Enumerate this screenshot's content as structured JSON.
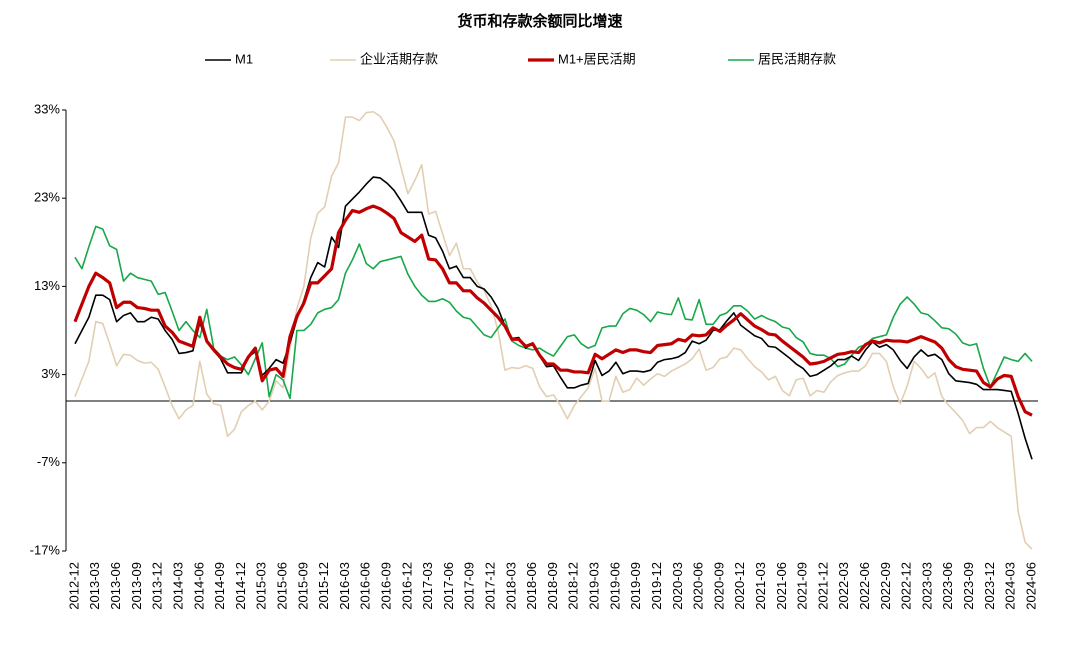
{
  "chart_data": {
    "type": "line",
    "title": "货币和存款余额同比增速",
    "legend": "top",
    "categories": [
      "2012-12",
      null,
      null,
      "2013-03",
      null,
      null,
      "2013-06",
      null,
      null,
      "2013-09",
      null,
      null,
      "2013-12",
      null,
      null,
      "2014-03",
      null,
      null,
      "2014-06",
      null,
      null,
      "2014-09",
      null,
      null,
      "2014-12",
      null,
      null,
      "2015-03",
      null,
      null,
      "2015-06",
      null,
      null,
      "2015-09",
      null,
      null,
      "2015-12",
      null,
      null,
      "2016-03",
      null,
      null,
      "2016-06",
      null,
      null,
      "2016-09",
      null,
      null,
      "2016-12",
      null,
      null,
      "2017-03",
      null,
      null,
      "2017-06",
      null,
      null,
      "2017-09",
      null,
      null,
      "2017-12",
      null,
      null,
      "2018-03",
      null,
      null,
      "2018-06",
      null,
      null,
      "2018-09",
      null,
      null,
      "2018-12",
      null,
      null,
      "2019-03",
      null,
      null,
      "2019-06",
      null,
      null,
      "2019-09",
      null,
      null,
      "2019-12",
      null,
      null,
      "2020-03",
      null,
      null,
      "2020-06",
      null,
      null,
      "2020-09",
      null,
      null,
      "2020-12",
      null,
      null,
      "2021-03",
      null,
      null,
      "2021-06",
      null,
      null,
      "2021-09",
      null,
      null,
      "2021-12",
      null,
      null,
      "2022-03",
      null,
      null,
      "2022-06",
      null,
      null,
      "2022-09",
      null,
      null,
      "2022-12",
      null,
      null,
      "2023-03",
      null,
      null,
      "2023-06",
      null,
      null,
      "2023-09",
      null,
      null,
      "2023-12",
      null,
      null,
      "2024-03",
      null,
      null,
      "2024-06"
    ],
    "ylim": [
      -17,
      33
    ],
    "yticks": [
      {
        "value": -17,
        "label": "-17%"
      },
      {
        "value": -7,
        "label": "-7%"
      },
      {
        "value": 3,
        "label": "3%"
      },
      {
        "value": 13,
        "label": "13%"
      },
      {
        "value": 23,
        "label": "23%"
      },
      {
        "value": 33,
        "label": "33%"
      }
    ],
    "series": [
      {
        "name": "M1",
        "color": "#000000",
        "width": 1.6,
        "values": [
          6.5,
          8,
          9.5,
          12,
          12,
          11.5,
          9,
          9.7,
          10,
          9,
          9,
          9.5,
          9.3,
          8,
          7,
          5.4,
          5.5,
          5.7,
          8.9,
          6.7,
          5.7,
          4.8,
          3.2,
          3.2,
          3.2,
          5,
          5.6,
          2.9,
          3.7,
          4.7,
          4.3,
          6.6,
          9.3,
          11.4,
          14,
          15.7,
          15.2,
          18.6,
          17.4,
          22.1,
          22.9,
          23.7,
          24.6,
          25.4,
          25.3,
          24.7,
          23.9,
          22.7,
          21.4,
          21.4,
          21.4,
          18.8,
          18.5,
          17,
          15,
          15.3,
          14,
          14,
          13,
          12.7,
          11.8,
          10.5,
          8.5,
          7.1,
          7.2,
          6,
          6.6,
          5.1,
          3.9,
          4,
          2.7,
          1.5,
          1.5,
          1.8,
          2,
          4.6,
          2.9,
          3.4,
          4.4,
          3.1,
          3.4,
          3.4,
          3.3,
          3.5,
          4.4,
          4.7,
          4.8,
          5,
          5.5,
          6.8,
          6.5,
          6.9,
          8,
          8.1,
          9.1,
          10,
          8.6,
          8,
          7.4,
          7.1,
          6.2,
          6.1,
          5.5,
          4.9,
          4.2,
          3.7,
          2.8,
          3,
          3.5,
          4,
          4.7,
          4.7,
          5.1,
          4.6,
          5.8,
          6.7,
          6.1,
          6.4,
          5.8,
          4.6,
          3.7,
          5,
          5.8,
          5.1,
          5.3,
          4.7,
          3.1,
          2.3,
          2.2,
          2.1,
          1.9,
          1.3,
          1.3,
          1.3,
          1.2,
          1.1,
          -1.4,
          -4.2,
          -6.6
        ]
      },
      {
        "name": "企业活期存款",
        "color": "#e2cfb3",
        "width": 1.6,
        "values": [
          0.5,
          2.5,
          4.5,
          9,
          8.8,
          6.5,
          4,
          5.3,
          5.2,
          4.6,
          4.3,
          4.4,
          3.6,
          1.6,
          -0.5,
          -2,
          -1,
          -0.5,
          4.5,
          0.8,
          -0.3,
          -0.5,
          -4,
          -3.2,
          -1.2,
          -0.5,
          0,
          -1,
          0,
          2.3,
          1.5,
          6,
          10.5,
          13,
          18.5,
          21.3,
          22,
          25.5,
          27,
          32.2,
          32.2,
          31.8,
          32.7,
          32.8,
          32.3,
          31,
          29.5,
          26.5,
          23.5,
          25,
          26.8,
          21.2,
          21.5,
          19,
          16.5,
          17.9,
          15,
          15,
          13.5,
          12.5,
          10.8,
          8,
          3.5,
          3.8,
          3.7,
          4,
          3.7,
          1.6,
          0.5,
          0.7,
          -0.5,
          -2,
          -0.5,
          0.5,
          1.5,
          3.7,
          0,
          0,
          2.8,
          1,
          1.3,
          2.6,
          1.8,
          2.5,
          3.1,
          2.8,
          3.4,
          3.8,
          4.2,
          4.8,
          5.9,
          3.5,
          3.8,
          4.8,
          5,
          6,
          5.8,
          4.8,
          3.9,
          3.3,
          2.4,
          2.8,
          1.2,
          0.6,
          2.4,
          2.6,
          0.6,
          1.2,
          1,
          2.2,
          2.9,
          3.2,
          3.4,
          3.4,
          4,
          5.4,
          5.4,
          4.5,
          1.6,
          -0.3,
          1.7,
          4.5,
          3.7,
          2.6,
          3.2,
          0.5,
          -0.5,
          -1.3,
          -2.2,
          -3.7,
          -3,
          -3,
          -2.3,
          -3,
          -3.5,
          -4,
          -12.5,
          -16,
          -16.8
        ]
      },
      {
        "name": "M1+居民活期",
        "color": "#c00000",
        "width": 3.2,
        "values": [
          9,
          11,
          13,
          14.5,
          14,
          13.4,
          10.6,
          11.2,
          11.2,
          10.6,
          10.5,
          10.3,
          10.3,
          8.5,
          7.8,
          6.8,
          6.5,
          6.2,
          9.5,
          6.8,
          5.8,
          5,
          4.2,
          3.8,
          3.6,
          5,
          6,
          2.3,
          3.5,
          3.7,
          2.8,
          7.3,
          9.6,
          11.1,
          13.4,
          13.4,
          14.2,
          15,
          19.1,
          20.5,
          21.6,
          21.4,
          21.8,
          22.1,
          21.8,
          21.3,
          20.7,
          19.1,
          18.6,
          18.1,
          18.8,
          16.1,
          16,
          15,
          13.4,
          13.4,
          12.5,
          12.5,
          11.7,
          11.1,
          10.3,
          9.5,
          8.5,
          7,
          7,
          6.2,
          6.5,
          5.2,
          4.2,
          4.2,
          3.5,
          3.5,
          3.3,
          3.3,
          3.2,
          5.3,
          4.8,
          5.3,
          5.8,
          5.5,
          5.8,
          5.8,
          5.6,
          5.5,
          6.3,
          6.4,
          6.5,
          7,
          6.8,
          7.5,
          7.4,
          7.5,
          8.3,
          7.9,
          8.6,
          9.2,
          9.9,
          9.2,
          8.5,
          8.1,
          7.6,
          7.5,
          6.8,
          6.2,
          5.6,
          5,
          4.2,
          4.3,
          4.5,
          4.9,
          5.3,
          5.4,
          5.6,
          5.5,
          6.4,
          6.8,
          6.6,
          6.9,
          6.8,
          6.8,
          6.7,
          7,
          7.3,
          7,
          6.7,
          6,
          4.7,
          3.9,
          3.6,
          3.5,
          3.4,
          2.1,
          1.6,
          2.5,
          2.9,
          2.8,
          0.5,
          -1.2,
          -1.6
        ]
      },
      {
        "name": "居民活期存款",
        "color": "#17a84a",
        "width": 1.6,
        "values": [
          16.3,
          15,
          17.5,
          19.8,
          19.5,
          17.6,
          17.2,
          13.6,
          14.5,
          14,
          13.8,
          13.6,
          12.1,
          12.3,
          10.2,
          8,
          9,
          8,
          7.2,
          10.4,
          6,
          5.1,
          4.7,
          5,
          4.1,
          3,
          4.8,
          6.6,
          0.5,
          3,
          2.4,
          0.3,
          8,
          8,
          8.7,
          10,
          10.4,
          10.6,
          11.5,
          14.5,
          16,
          17.8,
          15.6,
          15,
          15.8,
          16,
          16.2,
          16.4,
          14.4,
          13,
          12,
          11.3,
          11.3,
          11.6,
          11.2,
          10.2,
          9.5,
          9.3,
          8.4,
          7.5,
          7.2,
          8.3,
          9.3,
          6.8,
          6.3,
          6,
          5.8,
          6,
          5.5,
          5.1,
          6.2,
          7.3,
          7.5,
          6.5,
          6,
          6.3,
          8.3,
          8.5,
          8.5,
          9.9,
          10.5,
          10.3,
          9.8,
          9,
          10.1,
          9.9,
          9.8,
          11.7,
          9.3,
          9.2,
          11.5,
          8.7,
          8.7,
          9.7,
          10,
          10.8,
          10.8,
          10.2,
          9.3,
          9.7,
          9.3,
          9,
          8.4,
          8.2,
          7.2,
          6.7,
          5.4,
          5.2,
          5.2,
          4.8,
          3.9,
          4.2,
          5.2,
          6.1,
          6.4,
          7.1,
          7.3,
          7.5,
          9.5,
          11,
          11.8,
          11,
          10,
          9.8,
          9.1,
          8.3,
          8.2,
          7.6,
          6.6,
          6.3,
          6.5,
          3.7,
          1.6,
          3.3,
          5,
          4.7,
          4.5,
          5.4,
          4.5
        ]
      }
    ]
  }
}
